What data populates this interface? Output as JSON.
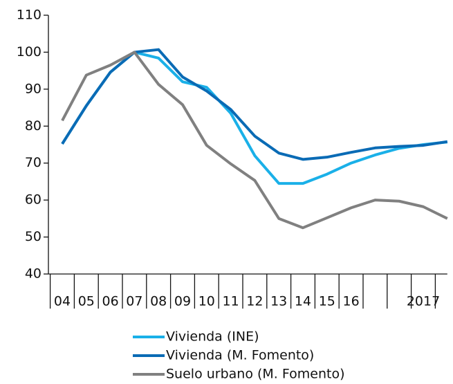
{
  "chart_data": {
    "type": "line",
    "categories": [
      "04",
      "05",
      "06",
      "07",
      "08",
      "09",
      "10",
      "11",
      "12",
      "13",
      "14",
      "15",
      "16",
      null,
      null,
      "2017",
      null
    ],
    "series": [
      {
        "name": "Vivienda (INE)",
        "color": "#1ab0e8",
        "values": [
          75.2,
          85.5,
          94.6,
          100,
          98.4,
          92,
          90.5,
          83.5,
          72,
          64.5,
          64.5,
          67,
          70,
          72.2,
          74,
          75,
          75.7
        ]
      },
      {
        "name": "Vivienda (M. Fomento)",
        "color": "#0a6bb5",
        "values": [
          75.2,
          85.5,
          94.6,
          100,
          100.7,
          93.3,
          89.5,
          84.5,
          77.3,
          72.7,
          71,
          71.6,
          72.9,
          74.1,
          74.5,
          74.8,
          75.8
        ]
      },
      {
        "name": "Suelo urbano (M. Fomento)",
        "color": "#808080",
        "values": [
          81.5,
          93.8,
          96.5,
          100,
          91.3,
          85.8,
          74.8,
          69.8,
          65.3,
          55,
          52.5,
          55.2,
          57.9,
          60,
          59.7,
          58.2,
          55
        ]
      }
    ],
    "ylim": [
      40,
      110
    ],
    "yticks": [
      40,
      50,
      60,
      70,
      80,
      90,
      100,
      110
    ]
  }
}
